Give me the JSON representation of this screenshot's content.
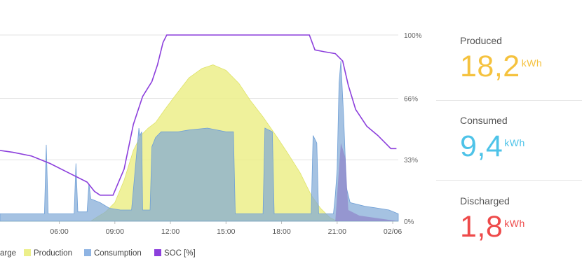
{
  "chart_data": {
    "type": "area",
    "x_tick_labels": [
      "06:00",
      "09:00",
      "12:00",
      "15:00",
      "18:00",
      "21:00",
      "02/06"
    ],
    "x_hours": [
      6,
      9,
      12,
      15,
      18,
      21,
      24
    ],
    "xlim": [
      2.8,
      24.3
    ],
    "y_tick_labels": [
      "100%",
      "66%",
      "33%",
      "0%"
    ],
    "y_ticks": [
      100,
      66,
      33,
      0
    ],
    "ylim": [
      0,
      100
    ],
    "legend": [
      {
        "name": "arge",
        "color": "#c9a640"
      },
      {
        "name": "Production",
        "color": "#ecef8a"
      },
      {
        "name": "Consumption",
        "color": "#8fb4e3"
      },
      {
        "name": "SOC [%]",
        "color": "#8c3fdc"
      }
    ],
    "series": [
      {
        "name": "SOC [%]",
        "x": [
          2.8,
          3.5,
          4.5,
          5.5,
          6.5,
          7.5,
          7.9,
          8.2,
          8.9,
          9.5,
          10.0,
          10.5,
          11.0,
          11.3,
          11.6,
          11.8,
          12.5,
          15.0,
          18.0,
          19.5,
          19.8,
          20.3,
          20.9,
          21.3,
          21.6,
          22.0,
          22.6,
          23.2,
          23.7,
          23.9,
          24.2
        ],
        "y": [
          38,
          37,
          35,
          31,
          26,
          21,
          16,
          14,
          14,
          28,
          52,
          67,
          75,
          84,
          96,
          100,
          100,
          100,
          100,
          100,
          92,
          91,
          90,
          86,
          73,
          60,
          51,
          46,
          41,
          39,
          39
        ]
      },
      {
        "name": "Production",
        "x": [
          2.8,
          7.7,
          8.0,
          8.5,
          9.0,
          9.5,
          10.0,
          10.4,
          10.8,
          11.2,
          11.7,
          12.3,
          13.0,
          13.7,
          14.3,
          15.0,
          15.7,
          16.3,
          17.0,
          17.7,
          18.3,
          19.0,
          19.6,
          20.1,
          20.6,
          21.0,
          24.3
        ],
        "y": [
          0,
          0,
          2,
          5,
          10,
          22,
          38,
          46,
          50,
          53,
          60,
          68,
          77,
          82,
          84,
          81,
          74,
          65,
          56,
          46,
          37,
          26,
          14,
          7,
          2,
          0,
          0
        ]
      },
      {
        "name": "Consumption",
        "x": [
          2.8,
          5.2,
          5.3,
          5.4,
          6.8,
          6.9,
          7.0,
          7.5,
          7.6,
          7.7,
          8.2,
          8.7,
          9.3,
          9.9,
          10.3,
          10.35,
          10.45,
          10.5,
          10.9,
          11.0,
          11.2,
          11.5,
          11.6,
          12.4,
          13.0,
          14.0,
          15.0,
          15.4,
          15.5,
          17.0,
          17.1,
          17.5,
          17.6,
          19.6,
          19.7,
          19.9,
          20.0,
          20.8,
          20.9,
          21.0,
          21.1,
          21.2,
          21.35,
          21.5,
          21.7,
          22.5,
          23.2,
          23.8,
          24.3
        ],
        "y": [
          4,
          4,
          41,
          4,
          4,
          31,
          5,
          5,
          20,
          12,
          10,
          7,
          6,
          6,
          50,
          46,
          48,
          6,
          6,
          40,
          45,
          48,
          48,
          48,
          49,
          50,
          48,
          48,
          4,
          4,
          50,
          48,
          4,
          4,
          46,
          42,
          4,
          4,
          14,
          28,
          74,
          86,
          56,
          18,
          10,
          8,
          7,
          6,
          4
        ]
      },
      {
        "name": "arge",
        "x": [
          2.8,
          20.9,
          21.0,
          21.2,
          21.45,
          21.6,
          22.2,
          24.3
        ],
        "y": [
          0,
          0,
          14,
          42,
          34,
          6,
          3,
          0
        ]
      }
    ]
  },
  "stats": {
    "produced": {
      "label": "Produced",
      "value": "18,2",
      "unit": "kWh",
      "color": "#f5c23e"
    },
    "consumed": {
      "label": "Consumed",
      "value": "9,4",
      "unit": "kWh",
      "color": "#4ec3e8"
    },
    "discharged": {
      "label": "Discharged",
      "value": "1,8",
      "unit": "kWh",
      "color": "#ee4a4a"
    }
  }
}
